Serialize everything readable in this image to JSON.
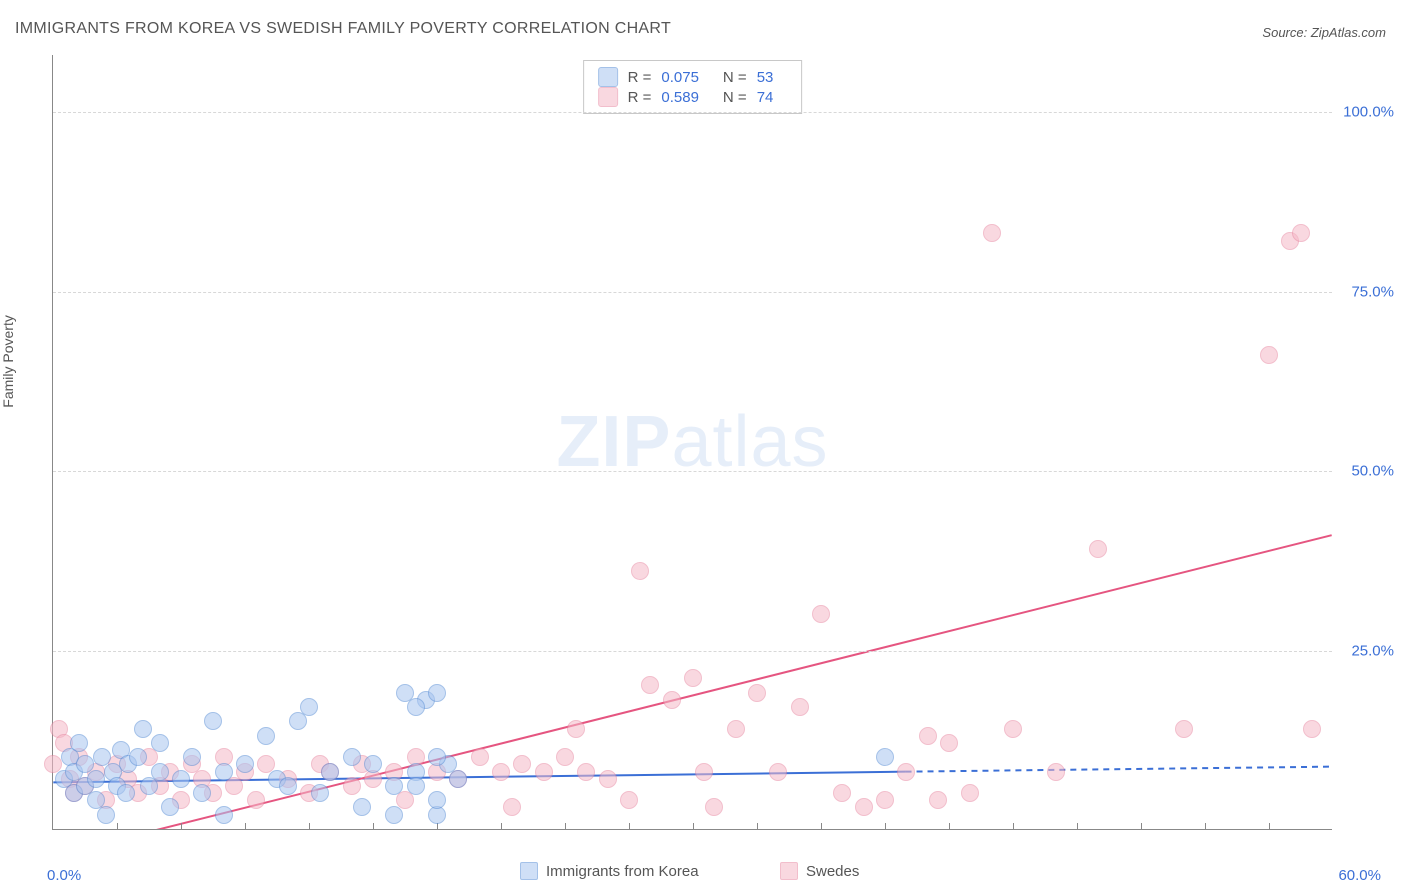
{
  "title": "IMMIGRANTS FROM KOREA VS SWEDISH FAMILY POVERTY CORRELATION CHART",
  "source_label": "Source:",
  "source_name": "ZipAtlas.com",
  "ylabel": "Family Poverty",
  "watermark_bold": "ZIP",
  "watermark_light": "atlas",
  "chart": {
    "type": "scatter",
    "xlim": [
      0,
      60
    ],
    "ylim": [
      0,
      108
    ],
    "yticks": [
      25,
      50,
      75,
      100
    ],
    "ytick_labels": [
      "25.0%",
      "50.0%",
      "75.0%",
      "100.0%"
    ],
    "xticks": [
      0,
      60
    ],
    "xtick_labels": [
      "0.0%",
      "60.0%"
    ],
    "minor_xticks": [
      3,
      6,
      9,
      12,
      15,
      18,
      21,
      24,
      27,
      30,
      33,
      36,
      39,
      42,
      45,
      48,
      51,
      54,
      57
    ],
    "background_color": "#ffffff",
    "grid_color": "#d8d8d8",
    "axis_color": "#888888",
    "tick_label_color": "#3b6fd6",
    "marker_radius": 9,
    "marker_stroke": 1.5,
    "series": [
      {
        "name": "Immigrants from Korea",
        "legend_label": "Immigrants from Korea",
        "R_label": "R =",
        "R": "0.075",
        "N_label": "N =",
        "N": "53",
        "fill": "#a8c5f0",
        "fill_opacity": 0.55,
        "stroke": "#5a8fd6",
        "trend": {
          "x1": 0,
          "y1": 6.5,
          "x2": 40,
          "y2": 8.0,
          "ext_x2": 60,
          "ext_y2": 8.7,
          "color": "#3b6fd6",
          "width": 2
        },
        "points": [
          [
            0.5,
            7
          ],
          [
            0.8,
            10
          ],
          [
            1,
            5
          ],
          [
            1,
            8
          ],
          [
            1.2,
            12
          ],
          [
            1.5,
            6
          ],
          [
            1.5,
            9
          ],
          [
            2,
            7
          ],
          [
            2,
            4
          ],
          [
            2.3,
            10
          ],
          [
            2.5,
            2
          ],
          [
            2.8,
            8
          ],
          [
            3,
            6
          ],
          [
            3.2,
            11
          ],
          [
            3.4,
            5
          ],
          [
            3.5,
            9
          ],
          [
            4,
            10
          ],
          [
            4.2,
            14
          ],
          [
            4.5,
            6
          ],
          [
            5,
            12
          ],
          [
            5,
            8
          ],
          [
            5.5,
            3
          ],
          [
            6,
            7
          ],
          [
            6.5,
            10
          ],
          [
            7,
            5
          ],
          [
            7.5,
            15
          ],
          [
            8,
            8
          ],
          [
            8,
            2
          ],
          [
            9,
            9
          ],
          [
            10,
            13
          ],
          [
            10.5,
            7
          ],
          [
            11,
            6
          ],
          [
            11.5,
            15
          ],
          [
            12,
            17
          ],
          [
            12.5,
            5
          ],
          [
            13,
            8
          ],
          [
            14,
            10
          ],
          [
            14.5,
            3
          ],
          [
            15,
            9
          ],
          [
            16,
            6
          ],
          [
            16.5,
            19
          ],
          [
            17,
            8
          ],
          [
            17.5,
            18
          ],
          [
            18,
            2
          ],
          [
            18.5,
            9
          ],
          [
            16,
            2
          ],
          [
            17,
            17
          ],
          [
            18,
            10
          ],
          [
            18,
            4
          ],
          [
            17,
            6
          ],
          [
            19,
            7
          ],
          [
            18,
            19
          ],
          [
            39,
            10
          ]
        ]
      },
      {
        "name": "Swedes",
        "legend_label": "Swedes",
        "R_label": "R =",
        "R": "0.589",
        "N_label": "N =",
        "N": "74",
        "fill": "#f5b9c8",
        "fill_opacity": 0.55,
        "stroke": "#e88aa3",
        "trend": {
          "x1": 1,
          "y1": -3,
          "x2": 60,
          "y2": 41,
          "color": "#e55580",
          "width": 2
        },
        "points": [
          [
            0,
            9
          ],
          [
            0.3,
            14
          ],
          [
            0.5,
            12
          ],
          [
            0.8,
            7
          ],
          [
            1,
            5
          ],
          [
            1.2,
            10
          ],
          [
            1.5,
            6
          ],
          [
            2,
            8
          ],
          [
            2.5,
            4
          ],
          [
            3,
            9
          ],
          [
            3.5,
            7
          ],
          [
            4,
            5
          ],
          [
            4.5,
            10
          ],
          [
            5,
            6
          ],
          [
            5.5,
            8
          ],
          [
            6,
            4
          ],
          [
            6.5,
            9
          ],
          [
            7,
            7
          ],
          [
            7.5,
            5
          ],
          [
            8,
            10
          ],
          [
            8.5,
            6
          ],
          [
            9,
            8
          ],
          [
            9.5,
            4
          ],
          [
            10,
            9
          ],
          [
            11,
            7
          ],
          [
            12,
            5
          ],
          [
            12.5,
            9
          ],
          [
            13,
            8
          ],
          [
            14,
            6
          ],
          [
            14.5,
            9
          ],
          [
            15,
            7
          ],
          [
            16,
            8
          ],
          [
            16.5,
            4
          ],
          [
            17,
            10
          ],
          [
            18,
            8
          ],
          [
            19,
            7
          ],
          [
            20,
            10
          ],
          [
            21,
            8
          ],
          [
            21.5,
            3
          ],
          [
            22,
            9
          ],
          [
            23,
            8
          ],
          [
            24,
            10
          ],
          [
            24.5,
            14
          ],
          [
            25,
            8
          ],
          [
            26,
            7
          ],
          [
            27,
            4
          ],
          [
            27.5,
            36
          ],
          [
            28,
            20
          ],
          [
            29,
            18
          ],
          [
            30,
            21
          ],
          [
            30.5,
            8
          ],
          [
            31,
            3
          ],
          [
            32,
            14
          ],
          [
            33,
            19
          ],
          [
            34,
            8
          ],
          [
            35,
            17
          ],
          [
            36,
            30
          ],
          [
            37,
            5
          ],
          [
            38,
            3
          ],
          [
            39,
            4
          ],
          [
            40,
            8
          ],
          [
            41,
            13
          ],
          [
            41.5,
            4
          ],
          [
            42,
            12
          ],
          [
            43,
            5
          ],
          [
            44,
            83
          ],
          [
            45,
            14
          ],
          [
            47,
            8
          ],
          [
            49,
            39
          ],
          [
            53,
            14
          ],
          [
            57,
            66
          ],
          [
            58,
            82
          ],
          [
            58.5,
            83
          ],
          [
            59,
            14
          ]
        ]
      }
    ]
  }
}
